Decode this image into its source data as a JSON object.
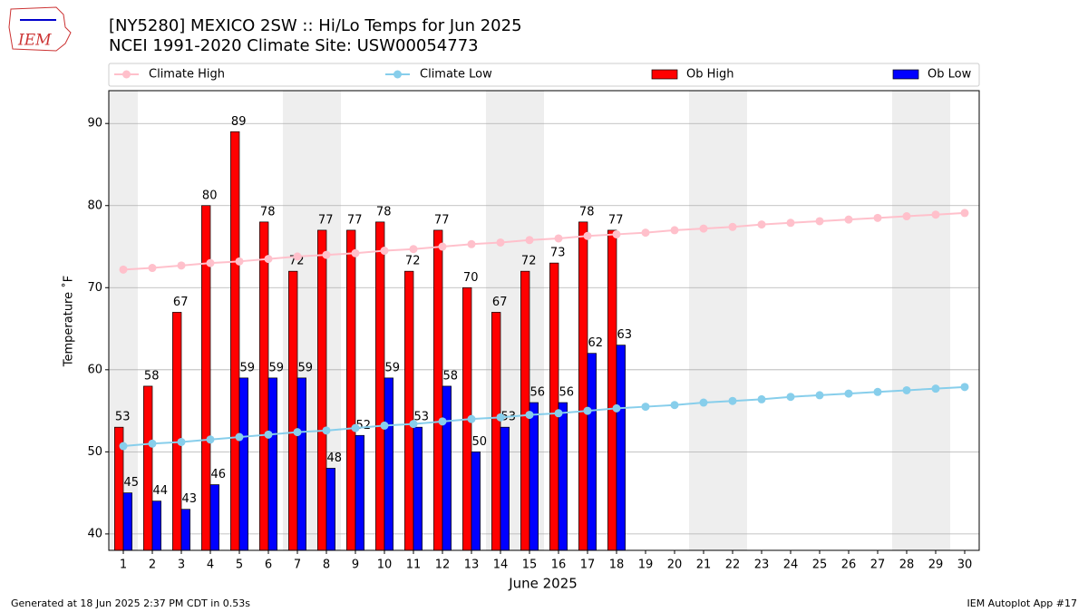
{
  "logo_text": "IEM",
  "footer_left": "Generated at 18 Jun 2025 2:37 PM CDT in 0.53s",
  "footer_right": "IEM Autoplot App #17",
  "chart_data": {
    "type": "bar",
    "title": "[NY5280] MEXICO 2SW :: Hi/Lo Temps for Jun 2025",
    "subtitle": "NCEI 1991-2020 Climate Site: USW00054773",
    "x_label": "June 2025",
    "y_label": "Temperature ˚F",
    "x": [
      1,
      2,
      3,
      4,
      5,
      6,
      7,
      8,
      9,
      10,
      11,
      12,
      13,
      14,
      15,
      16,
      17,
      18,
      19,
      20,
      21,
      22,
      23,
      24,
      25,
      26,
      27,
      28,
      29,
      30
    ],
    "xlim": [
      0.5,
      30.5
    ],
    "xticks": [
      1,
      2,
      3,
      4,
      5,
      6,
      7,
      8,
      9,
      10,
      11,
      12,
      13,
      14,
      15,
      16,
      17,
      18,
      19,
      20,
      21,
      22,
      23,
      24,
      25,
      26,
      27,
      28,
      29,
      30
    ],
    "ylim": [
      38,
      94
    ],
    "yticks": [
      40,
      50,
      60,
      70,
      80,
      90
    ],
    "grid": true,
    "series": [
      {
        "name": "Climate High",
        "type": "line",
        "color": "#ffc0cb",
        "values": [
          72.2,
          72.4,
          72.7,
          73.0,
          73.2,
          73.5,
          73.8,
          74.0,
          74.2,
          74.5,
          74.7,
          75.0,
          75.3,
          75.5,
          75.8,
          76.0,
          76.3,
          76.5,
          76.7,
          77.0,
          77.2,
          77.4,
          77.7,
          77.9,
          78.1,
          78.3,
          78.5,
          78.7,
          78.9,
          79.1
        ]
      },
      {
        "name": "Climate Low",
        "type": "line",
        "color": "#87ceeb",
        "values": [
          50.7,
          51.0,
          51.2,
          51.5,
          51.8,
          52.1,
          52.4,
          52.6,
          52.9,
          53.2,
          53.4,
          53.7,
          54.0,
          54.2,
          54.5,
          54.7,
          55.0,
          55.3,
          55.5,
          55.7,
          56.0,
          56.2,
          56.4,
          56.7,
          56.9,
          57.1,
          57.3,
          57.5,
          57.7,
          57.9
        ]
      },
      {
        "name": "Ob High",
        "type": "bar",
        "color": "#ff0000",
        "values": [
          53,
          58,
          67,
          80,
          89,
          78,
          72,
          77,
          77,
          78,
          72,
          77,
          70,
          67,
          72,
          73,
          78,
          77,
          null,
          null,
          null,
          null,
          null,
          null,
          null,
          null,
          null,
          null,
          null,
          null
        ]
      },
      {
        "name": "Ob Low",
        "type": "bar",
        "color": "#0000ff",
        "values": [
          45,
          44,
          43,
          46,
          59,
          59,
          59,
          48,
          52,
          59,
          53,
          58,
          50,
          53,
          56,
          56,
          62,
          63,
          null,
          null,
          null,
          null,
          null,
          null,
          null,
          null,
          null,
          null,
          null,
          null
        ]
      }
    ]
  }
}
